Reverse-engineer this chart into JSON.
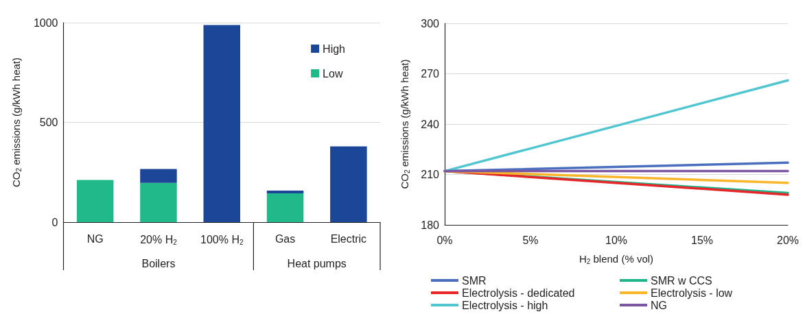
{
  "chart_data": [
    {
      "type": "bar",
      "stacked": true,
      "ylabel": "CO$_{2}$ emissions (g/kWh heat)",
      "categories": [
        "NG",
        "20% H$_{2}$",
        "100% H$_{2}$",
        "Gas",
        "Electric"
      ],
      "series": [
        {
          "name": "Low",
          "color": "#22b98a",
          "values": [
            211,
            197,
            0,
            144,
            0
          ]
        },
        {
          "name": "High",
          "color": "#1c4799",
          "values": [
            0,
            69,
            988,
            14,
            380
          ]
        }
      ],
      "ylim": [
        0,
        1000
      ],
      "yticks": [
        0,
        500,
        1000
      ],
      "grid": "y",
      "legend": "top right",
      "annotations": [
        "Boilers",
        "Heat pumps"
      ]
    },
    {
      "type": "line",
      "xlabel": "H$_{2}$ blend (% vol)",
      "ylabel": "CO$_{2}$ emissions (g/kWh heat)",
      "x": [
        0,
        20
      ],
      "series": [
        {
          "name": "SMR",
          "color": "#4a6fbf",
          "values": [
            212,
            217
          ]
        },
        {
          "name": "SMR w CCS",
          "color": "#1fb58a",
          "values": [
            212,
            199
          ]
        },
        {
          "name": "Electrolysis - dedicated",
          "color": "#e8262a",
          "values": [
            212,
            198
          ]
        },
        {
          "name": "Electrolysis - low",
          "color": "#f9b62a",
          "values": [
            212,
            205
          ]
        },
        {
          "name": "Electrolysis - high",
          "color": "#4fc6d0",
          "values": [
            212,
            266
          ]
        },
        {
          "name": "NG",
          "color": "#7b56a3",
          "values": [
            212,
            212
          ]
        }
      ],
      "xlim": [
        0,
        20
      ],
      "xticks": [
        {
          "value": 0,
          "label": "0%"
        },
        {
          "value": 5,
          "label": "5%"
        },
        {
          "value": 10,
          "label": "10%"
        },
        {
          "value": 15,
          "label": "15%"
        },
        {
          "value": 20,
          "label": "20%"
        }
      ],
      "ylim": [
        180,
        300
      ],
      "yticks": [
        180,
        210,
        240,
        270,
        300
      ],
      "grid": "y",
      "legend": "bottom"
    }
  ]
}
